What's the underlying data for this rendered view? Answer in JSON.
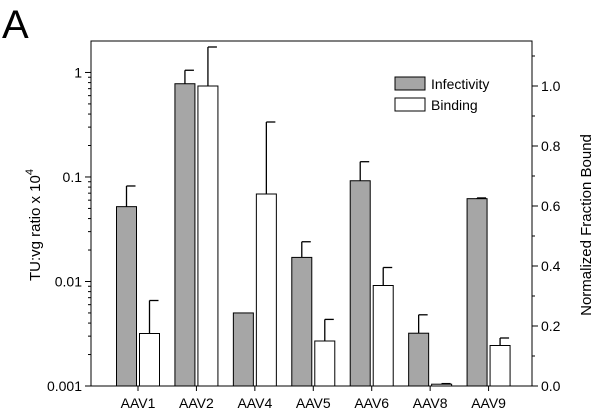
{
  "panel_label": "A",
  "chart_data": {
    "type": "bar",
    "categories": [
      "AAV1",
      "AAV2",
      "AAV4",
      "AAV5",
      "AAV6",
      "AAV8",
      "AAV9"
    ],
    "left_axis": {
      "label": "TU:vg ratio x 10",
      "label_superscript": "4",
      "scale": "log",
      "ylim": [
        0.001,
        2
      ],
      "ticks": [
        0.001,
        0.01,
        0.1,
        1
      ],
      "tick_labels": [
        "0.001",
        "0.01",
        "0.1",
        "1"
      ]
    },
    "right_axis": {
      "label": "Normalized Fraction Bound",
      "scale": "linear",
      "ylim": [
        0,
        1.15
      ],
      "ticks": [
        0,
        0.2,
        0.4,
        0.6,
        0.8,
        1.0
      ],
      "tick_labels": [
        "0.0",
        "0.2",
        "0.4",
        "0.6",
        "0.8",
        "1.0"
      ]
    },
    "series": [
      {
        "name": "Infectivity",
        "axis": "left",
        "color": "#a6a6a6",
        "values": [
          0.052,
          0.78,
          0.005,
          0.017,
          0.092,
          0.0032,
          0.062
        ],
        "error_upper": [
          0.082,
          1.05,
          null,
          0.024,
          0.14,
          0.0048,
          0.063
        ]
      },
      {
        "name": "Binding",
        "axis": "right",
        "color": "#ffffff",
        "values": [
          0.175,
          1.0,
          0.64,
          0.15,
          0.335,
          0.006,
          0.135
        ],
        "error_upper": [
          0.285,
          1.13,
          0.88,
          0.222,
          0.395,
          0.008,
          0.16
        ]
      }
    ],
    "legend_position": "top-right",
    "grid": false
  }
}
